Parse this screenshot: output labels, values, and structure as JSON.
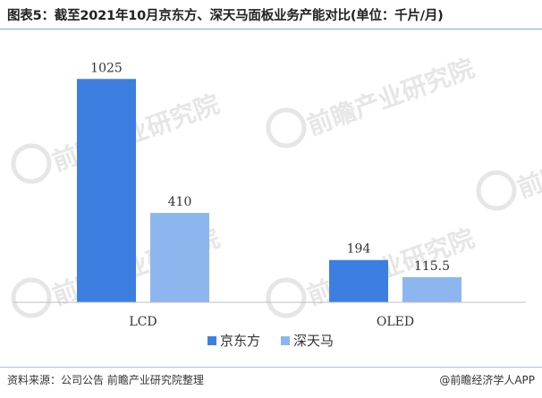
{
  "header": {
    "title": "图表5：截至2021年10月京东方、深天马面板业务产能对比(单位：千片/月)"
  },
  "chart_data": {
    "type": "bar",
    "categories": [
      "LCD",
      "OLED"
    ],
    "series": [
      {
        "name": "京东方",
        "values": [
          1025,
          194
        ],
        "value_labels": [
          "1025",
          "194"
        ],
        "color": "#3d7fe0"
      },
      {
        "name": "深天马",
        "values": [
          410,
          115.5
        ],
        "value_labels": [
          "410",
          "115.5"
        ],
        "color": "#8db6ee"
      }
    ],
    "ylim": [
      0,
      1100
    ],
    "grid": false,
    "legend_position": "bottom-center",
    "xlabel": "",
    "ylabel": ""
  },
  "watermark": {
    "text": "前瞻产业研究院",
    "color": "#e6e6e6"
  },
  "footer": {
    "source": "资料来源：公司公告 前瞻产业研究院整理",
    "brand": "@前瞻经济学人APP"
  }
}
